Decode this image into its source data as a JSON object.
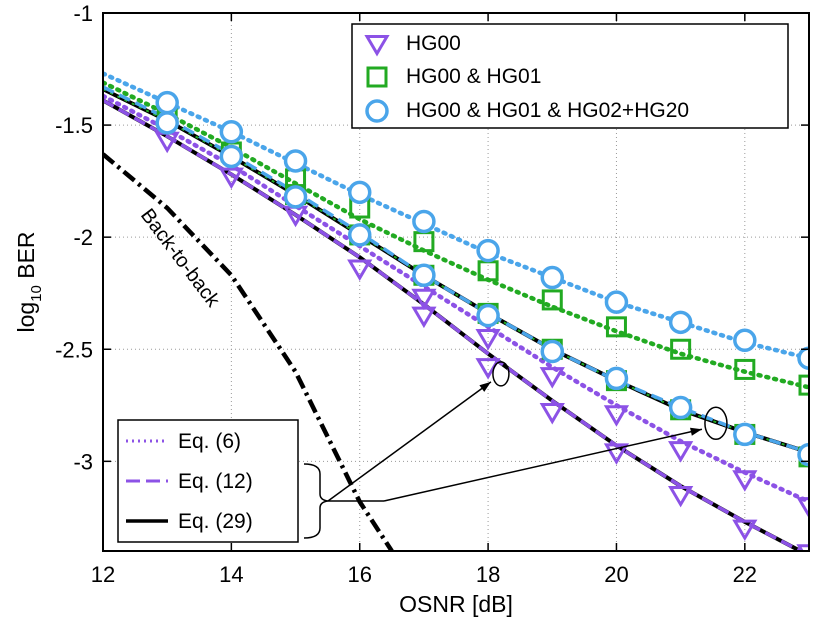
{
  "chart_data": {
    "type": "line",
    "xlabel": "OSNR  [dB]",
    "ylabel_main": "log",
    "ylabel_sub": "10",
    "ylabel_tail": " BER",
    "xlim": [
      12,
      23
    ],
    "ylim": [
      -3.4,
      -1.0
    ],
    "xticks": [
      12,
      14,
      16,
      18,
      20,
      22
    ],
    "yticks": [
      -1,
      -1.5,
      -2,
      -2.5,
      -3
    ],
    "grid": true,
    "legend_top": {
      "position": "top-right",
      "entries": [
        {
          "label": "HG00",
          "marker": "triangle-down",
          "color": "#8c52e6"
        },
        {
          "label": "HG00 & HG01",
          "marker": "square",
          "color": "#22aa22"
        },
        {
          "label": "HG00 & HG01 & HG02+HG20",
          "marker": "circle",
          "color": "#4aa5ea"
        }
      ]
    },
    "legend_bottom": {
      "position": "bottom-left",
      "entries": [
        {
          "label": "Eq. (6)",
          "style": "dotted"
        },
        {
          "label": "Eq. (12)",
          "style": "dashed"
        },
        {
          "label": "Eq. (29)",
          "style": "solid"
        }
      ]
    },
    "annotation_text": "Back-to-back",
    "back_to_back": {
      "x": [
        12,
        13,
        14,
        15,
        16,
        16.5
      ],
      "y": [
        -1.63,
        -1.87,
        -2.17,
        -2.6,
        -3.18,
        -3.4
      ]
    },
    "series": [
      {
        "name": "HG00",
        "group": "HG00",
        "kind": "theory",
        "style": "solid-black",
        "x": [
          12,
          13,
          14,
          15,
          16,
          17,
          18,
          19,
          20,
          21,
          22,
          23
        ],
        "y": [
          -1.39,
          -1.55,
          -1.72,
          -1.9,
          -2.09,
          -2.3,
          -2.52,
          -2.73,
          -2.93,
          -3.11,
          -3.27,
          -3.42
        ]
      },
      {
        "name": "HG00 Eq. (12)",
        "group": "HG00",
        "kind": "theory",
        "style": "dashed",
        "x": [
          12,
          13,
          14,
          15,
          16,
          17,
          18,
          19,
          20,
          21,
          22,
          23
        ],
        "y": [
          -1.39,
          -1.55,
          -1.72,
          -1.9,
          -2.09,
          -2.3,
          -2.52,
          -2.73,
          -2.93,
          -3.11,
          -3.27,
          -3.42
        ]
      },
      {
        "name": "HG00 Eq. (6)",
        "group": "HG00",
        "kind": "theory",
        "style": "dotted",
        "x": [
          12,
          13,
          14,
          15,
          16,
          17,
          18,
          19,
          20,
          21,
          22,
          23
        ],
        "y": [
          -1.37,
          -1.52,
          -1.68,
          -1.86,
          -2.04,
          -2.22,
          -2.4,
          -2.58,
          -2.75,
          -2.91,
          -3.05,
          -3.18
        ]
      },
      {
        "name": "HG00 data A",
        "group": "HG00",
        "kind": "markers",
        "x": [
          13,
          14,
          15,
          16,
          17,
          18,
          19,
          20,
          21,
          22,
          23
        ],
        "y": [
          -1.57,
          -1.73,
          -1.9,
          -2.14,
          -2.35,
          -2.58,
          -2.78,
          -2.96,
          -3.15,
          -3.3,
          -3.41
        ]
      },
      {
        "name": "HG00 data B",
        "group": "HG00",
        "kind": "markers",
        "x": [
          17,
          18,
          19,
          20,
          21,
          22,
          23
        ],
        "y": [
          -2.27,
          -2.45,
          -2.62,
          -2.79,
          -2.95,
          -3.08,
          -3.2
        ]
      },
      {
        "name": "HG00 & HG01 Eq. (29)",
        "group": "HG00 & HG01",
        "kind": "theory",
        "style": "solid-black",
        "x": [
          12,
          13,
          14,
          15,
          16,
          17,
          18,
          19,
          20,
          21,
          22,
          23
        ],
        "y": [
          -1.34,
          -1.48,
          -1.64,
          -1.81,
          -1.99,
          -2.17,
          -2.34,
          -2.5,
          -2.64,
          -2.77,
          -2.87,
          -2.96
        ]
      },
      {
        "name": "HG00 & HG01 Eq. (6)",
        "group": "HG00 & HG01",
        "kind": "theory",
        "style": "dotted",
        "x": [
          12,
          13,
          14,
          15,
          16,
          17,
          18,
          19,
          20,
          21,
          22,
          23
        ],
        "y": [
          -1.31,
          -1.45,
          -1.6,
          -1.76,
          -1.92,
          -2.06,
          -2.19,
          -2.31,
          -2.42,
          -2.52,
          -2.6,
          -2.67
        ]
      },
      {
        "name": "HG00 & HG01 data A",
        "group": "HG00 & HG01",
        "kind": "markers",
        "x": [
          13,
          14,
          15,
          16,
          17,
          18,
          19,
          20,
          21,
          22,
          23
        ],
        "y": [
          -1.47,
          -1.62,
          -1.81,
          -1.99,
          -2.17,
          -2.34,
          -2.5,
          -2.64,
          -2.77,
          -2.88,
          -2.98
        ]
      },
      {
        "name": "HG00 & HG01 data B",
        "group": "HG00 & HG01",
        "kind": "markers",
        "x": [
          15,
          16,
          17,
          18,
          19,
          20,
          21,
          22,
          23
        ],
        "y": [
          -1.74,
          -1.87,
          -2.02,
          -2.15,
          -2.28,
          -2.4,
          -2.5,
          -2.59,
          -2.66
        ]
      },
      {
        "name": "HG00 & HG01 & HG02+HG20 Eq. (6)",
        "group": "HG00 & HG01 & HG02+HG20",
        "kind": "theory",
        "style": "dotted",
        "x": [
          12,
          13,
          14,
          15,
          16,
          17,
          18,
          19,
          20,
          21,
          22,
          23
        ],
        "y": [
          -1.27,
          -1.4,
          -1.53,
          -1.67,
          -1.81,
          -1.94,
          -2.07,
          -2.18,
          -2.29,
          -2.38,
          -2.47,
          -2.54
        ]
      },
      {
        "name": "HG00 & HG01 & HG02+HG20 Eq. (12)",
        "group": "HG00 & HG01 & HG02+HG20",
        "kind": "theory",
        "style": "dashed",
        "x": [
          12,
          13,
          14,
          15,
          16,
          17,
          18,
          19,
          20,
          21,
          22,
          23
        ],
        "y": [
          -1.33,
          -1.47,
          -1.63,
          -1.8,
          -1.98,
          -2.17,
          -2.34,
          -2.5,
          -2.64,
          -2.76,
          -2.87,
          -2.96
        ]
      },
      {
        "name": "HG00 & HG01 & HG02+HG20 data A",
        "group": "HG00 & HG01 & HG02+HG20",
        "kind": "markers",
        "x": [
          13,
          14,
          15,
          16,
          17,
          18,
          19,
          20,
          21,
          22,
          23
        ],
        "y": [
          -1.49,
          -1.64,
          -1.82,
          -1.99,
          -2.17,
          -2.35,
          -2.51,
          -2.63,
          -2.76,
          -2.88,
          -2.97
        ]
      },
      {
        "name": "HG00 & HG01 & HG02+HG20 data B",
        "group": "HG00 & HG01 & HG02+HG20",
        "kind": "markers",
        "x": [
          13,
          14,
          15,
          16,
          17,
          18,
          19,
          20,
          21,
          22,
          23
        ],
        "y": [
          -1.4,
          -1.53,
          -1.66,
          -1.8,
          -1.93,
          -2.06,
          -2.18,
          -2.29,
          -2.38,
          -2.46,
          -2.54
        ]
      }
    ],
    "group_colors": {
      "HG00": "#8c52e6",
      "HG00 & HG01": "#22aa22",
      "HG00 & HG01 & HG02+HG20": "#4aa5ea"
    },
    "group_markers": {
      "HG00": "triangle-down",
      "HG00 & HG01": "square",
      "HG00 & HG01 & HG02+HG20": "circle"
    },
    "ellipse_annotations": [
      {
        "x": 18.2,
        "y": -2.61
      },
      {
        "x": 21.55,
        "y": -2.83
      }
    ]
  }
}
